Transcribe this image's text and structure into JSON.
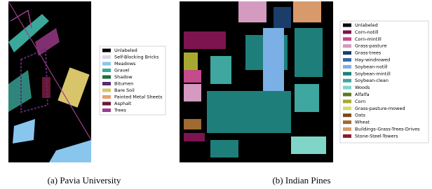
{
  "panels": [
    {
      "caption": "(a) Pavia University",
      "legend": [
        {
          "label": "Unlabeled",
          "color": "#000000"
        },
        {
          "label": "Self-Blocking Bricks",
          "color": "#d8d4ec"
        },
        {
          "label": "Meadows",
          "color": "#88c6ee"
        },
        {
          "label": "Gravel",
          "color": "#3aa89a"
        },
        {
          "label": "Shadow",
          "color": "#1c6e3a"
        },
        {
          "label": "Bitumen",
          "color": "#5a2a70"
        },
        {
          "label": "Bare Soil",
          "color": "#d8c56a"
        },
        {
          "label": "Painted Metal Sheets",
          "color": "#e8a070"
        },
        {
          "label": "Asphalt",
          "color": "#6a1735"
        },
        {
          "label": "Trees",
          "color": "#a03c8c"
        }
      ]
    },
    {
      "caption": "(b) Indian Pines",
      "legend": [
        {
          "label": "Unlabeled",
          "color": "#000000"
        },
        {
          "label": "Corn-notill",
          "color": "#7d1450"
        },
        {
          "label": "Corn-mintill",
          "color": "#c44b8c"
        },
        {
          "label": "Grass-pasture",
          "color": "#d49ac0"
        },
        {
          "label": "Grass-trees",
          "color": "#1a3d6a"
        },
        {
          "label": "Hay-windrowed",
          "color": "#3c6aa8"
        },
        {
          "label": "Soybean-notill",
          "color": "#7ab0e6"
        },
        {
          "label": "Soybean-mintill",
          "color": "#1e7f7a"
        },
        {
          "label": "Soybean-clean",
          "color": "#3fa7a0"
        },
        {
          "label": "Woods",
          "color": "#7fd6c8"
        },
        {
          "label": "Alfalfa",
          "color": "#5a7a1c"
        },
        {
          "label": "Corn",
          "color": "#a8a830"
        },
        {
          "label": "Grass-pasture-mowed",
          "color": "#d8d870"
        },
        {
          "label": "Oats",
          "color": "#7a4a1a"
        },
        {
          "label": "Wheat",
          "color": "#a06a30"
        },
        {
          "label": "Buildings-Grass-Trees-Drives",
          "color": "#d89a6a"
        },
        {
          "label": "Stone-Steel-Towers",
          "color": "#8a1a2a"
        }
      ]
    }
  ]
}
